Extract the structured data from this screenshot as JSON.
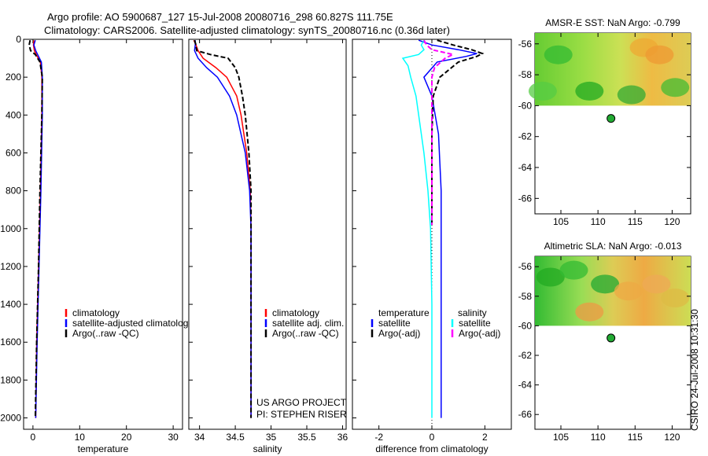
{
  "title": {
    "line1": "Argo profile: AO 5900687_127 15-Jul-2008 20080716_298 60.827S 111.75E",
    "line2": "Climatology: CARS2006. Satellite-adjusted climatology: synTS_20080716.nc (0.36d later)"
  },
  "side_stamp": "CSIRO 24-Jul-2008 10:31:30",
  "colors": {
    "climatology": "#ff0000",
    "satellite": "#0000ff",
    "argo": "#000000",
    "satellite_diff_s": "#00ffff",
    "argo_diff_s": "#ff00ff"
  },
  "chart_data": [
    {
      "type": "line",
      "xlabel": "temperature",
      "ylabel": "",
      "xlim": [
        -2,
        32
      ],
      "ylim": [
        2060,
        0
      ],
      "x_ticks": [
        0,
        10,
        20,
        30
      ],
      "y_ticks": [
        0,
        200,
        400,
        600,
        800,
        1000,
        1200,
        1400,
        1600,
        1800,
        2000
      ],
      "legend": [
        "climatology",
        "satellite-adjusted climatology",
        "Argo(..raw -QC)"
      ],
      "series": [
        {
          "name": "climatology",
          "color": "#ff0000",
          "depth": [
            5,
            30,
            60,
            90,
            120,
            200,
            400,
            800,
            1200,
            1600,
            2000
          ],
          "values": [
            0.2,
            0.1,
            0.3,
            0.9,
            1.6,
            1.9,
            1.9,
            1.6,
            1.2,
            0.8,
            0.6
          ]
        },
        {
          "name": "satellite-adjusted climatology",
          "color": "#0000ff",
          "depth": [
            5,
            30,
            60,
            90,
            120,
            200,
            400,
            800,
            1200,
            1600,
            2000
          ],
          "values": [
            0.5,
            0.2,
            0.6,
            1.2,
            1.8,
            2.0,
            2.0,
            1.7,
            1.3,
            0.9,
            0.6
          ]
        },
        {
          "name": "Argo(..raw -QC)",
          "color": "#000000",
          "dash": true,
          "depth": [
            5,
            30,
            60,
            80,
            120,
            200,
            400,
            800,
            1200,
            1600,
            2000
          ],
          "values": [
            -0.6,
            -0.8,
            -0.5,
            0.5,
            1.5,
            2.0,
            1.9,
            1.5,
            1.2,
            0.8,
            0.5
          ]
        }
      ]
    },
    {
      "type": "line",
      "xlabel": "salinity",
      "xlim": [
        33.85,
        36.05
      ],
      "ylim": [
        2060,
        0
      ],
      "x_ticks": [
        34,
        34.5,
        35,
        35.5,
        36
      ],
      "x_tick_labels": [
        "34",
        "34.5",
        "35",
        "35.5",
        "36"
      ],
      "legend": [
        "climatology",
        "satellite adj. clim.",
        "Argo(..raw -QC)"
      ],
      "annotation": [
        "US ARGO PROJECT",
        "PI: STEPHEN RISER"
      ],
      "series": [
        {
          "name": "climatology",
          "color": "#ff0000",
          "depth": [
            5,
            30,
            60,
            100,
            150,
            200,
            300,
            400,
            600,
            800,
            1000,
            1500,
            2000
          ],
          "values": [
            33.92,
            33.95,
            33.98,
            34.05,
            34.23,
            34.38,
            34.52,
            34.58,
            34.66,
            34.71,
            34.72,
            34.72,
            34.72
          ]
        },
        {
          "name": "satellite adj. clim.",
          "color": "#0000ff",
          "depth": [
            5,
            30,
            60,
            100,
            150,
            200,
            300,
            400,
            600,
            800,
            1000,
            1500,
            2000
          ],
          "values": [
            33.94,
            33.94,
            33.93,
            33.98,
            34.1,
            34.25,
            34.42,
            34.52,
            34.64,
            34.7,
            34.72,
            34.72,
            34.72
          ]
        },
        {
          "name": "Argo(..raw -QC)",
          "color": "#000000",
          "dash": true,
          "depth": [
            5,
            30,
            60,
            80,
            100,
            150,
            200,
            300,
            400,
            600,
            800,
            1000,
            1500,
            2000
          ],
          "values": [
            33.93,
            33.95,
            33.96,
            34.15,
            34.4,
            34.5,
            34.55,
            34.6,
            34.64,
            34.69,
            34.72,
            34.72,
            34.72,
            34.72
          ]
        }
      ]
    },
    {
      "type": "line",
      "xlabel": "difference from climatology",
      "xlim": [
        -3.0,
        3.0
      ],
      "ylim": [
        2060,
        0
      ],
      "x_ticks": [
        -2,
        0,
        2
      ],
      "legend_title_t": "temperature",
      "legend_title_s": "salinity",
      "legend_t": [
        "satellite",
        "Argo(-adj)"
      ],
      "legend_s": [
        "satellite",
        "Argo(-adj)"
      ],
      "series": [
        {
          "name": "temperature satellite",
          "color": "#0000ff",
          "depth": [
            5,
            30,
            55,
            75,
            90,
            120,
            200,
            300,
            500,
            800,
            1200,
            1600,
            2000
          ],
          "values": [
            -0.5,
            0.0,
            1.0,
            1.7,
            1.3,
            0.2,
            -0.3,
            0.0,
            0.25,
            0.35,
            0.35,
            0.35,
            0.35
          ]
        },
        {
          "name": "temperature Argo(-adj)",
          "color": "#000000",
          "dash": true,
          "depth": [
            5,
            30,
            55,
            75,
            90,
            120,
            200,
            300,
            500,
            800,
            980
          ],
          "values": [
            0.2,
            0.8,
            1.5,
            1.9,
            1.7,
            1.0,
            0.3,
            0.05,
            0.0,
            0.0,
            0.0
          ]
        },
        {
          "name": "salinity satellite",
          "color": "#00ffff",
          "depth": [
            5,
            30,
            55,
            80,
            100,
            140,
            200,
            300,
            400,
            600,
            800,
            1000,
            1400,
            2000
          ],
          "values": [
            -0.3,
            -0.4,
            -0.3,
            -0.5,
            -1.1,
            -0.9,
            -0.8,
            -0.6,
            -0.5,
            -0.3,
            -0.15,
            -0.05,
            0.0,
            0.0
          ]
        },
        {
          "name": "salinity Argo(-adj)",
          "color": "#ff00ff",
          "dash": true,
          "depth": [
            5,
            30,
            55,
            80,
            100,
            150,
            200,
            300,
            500,
            800,
            980
          ],
          "values": [
            -0.3,
            -0.2,
            0.0,
            0.8,
            0.5,
            0.1,
            0.0,
            0.0,
            0.0,
            0.0,
            0.0
          ]
        }
      ]
    },
    {
      "type": "heatmap",
      "title": "AMSR-E SST: NaN Argo: -0.799",
      "xlim": [
        101.5,
        122.5
      ],
      "ylim": [
        -67,
        -55.3
      ],
      "x_ticks": [
        105,
        110,
        115,
        120
      ],
      "y_ticks": [
        -56,
        -58,
        -60,
        -62,
        -64,
        -66
      ],
      "point": {
        "lon": 111.75,
        "lat": -60.827,
        "color": "#22aa33"
      }
    },
    {
      "type": "heatmap",
      "title": "Altimetric SLA: NaN Argo: -0.013",
      "xlim": [
        101.5,
        122.5
      ],
      "ylim": [
        -67,
        -55.3
      ],
      "x_ticks": [
        105,
        110,
        115,
        120
      ],
      "y_ticks": [
        -56,
        -58,
        -60,
        -62,
        -64,
        -66
      ],
      "point": {
        "lon": 111.75,
        "lat": -60.827,
        "color": "#22aa33"
      }
    }
  ]
}
